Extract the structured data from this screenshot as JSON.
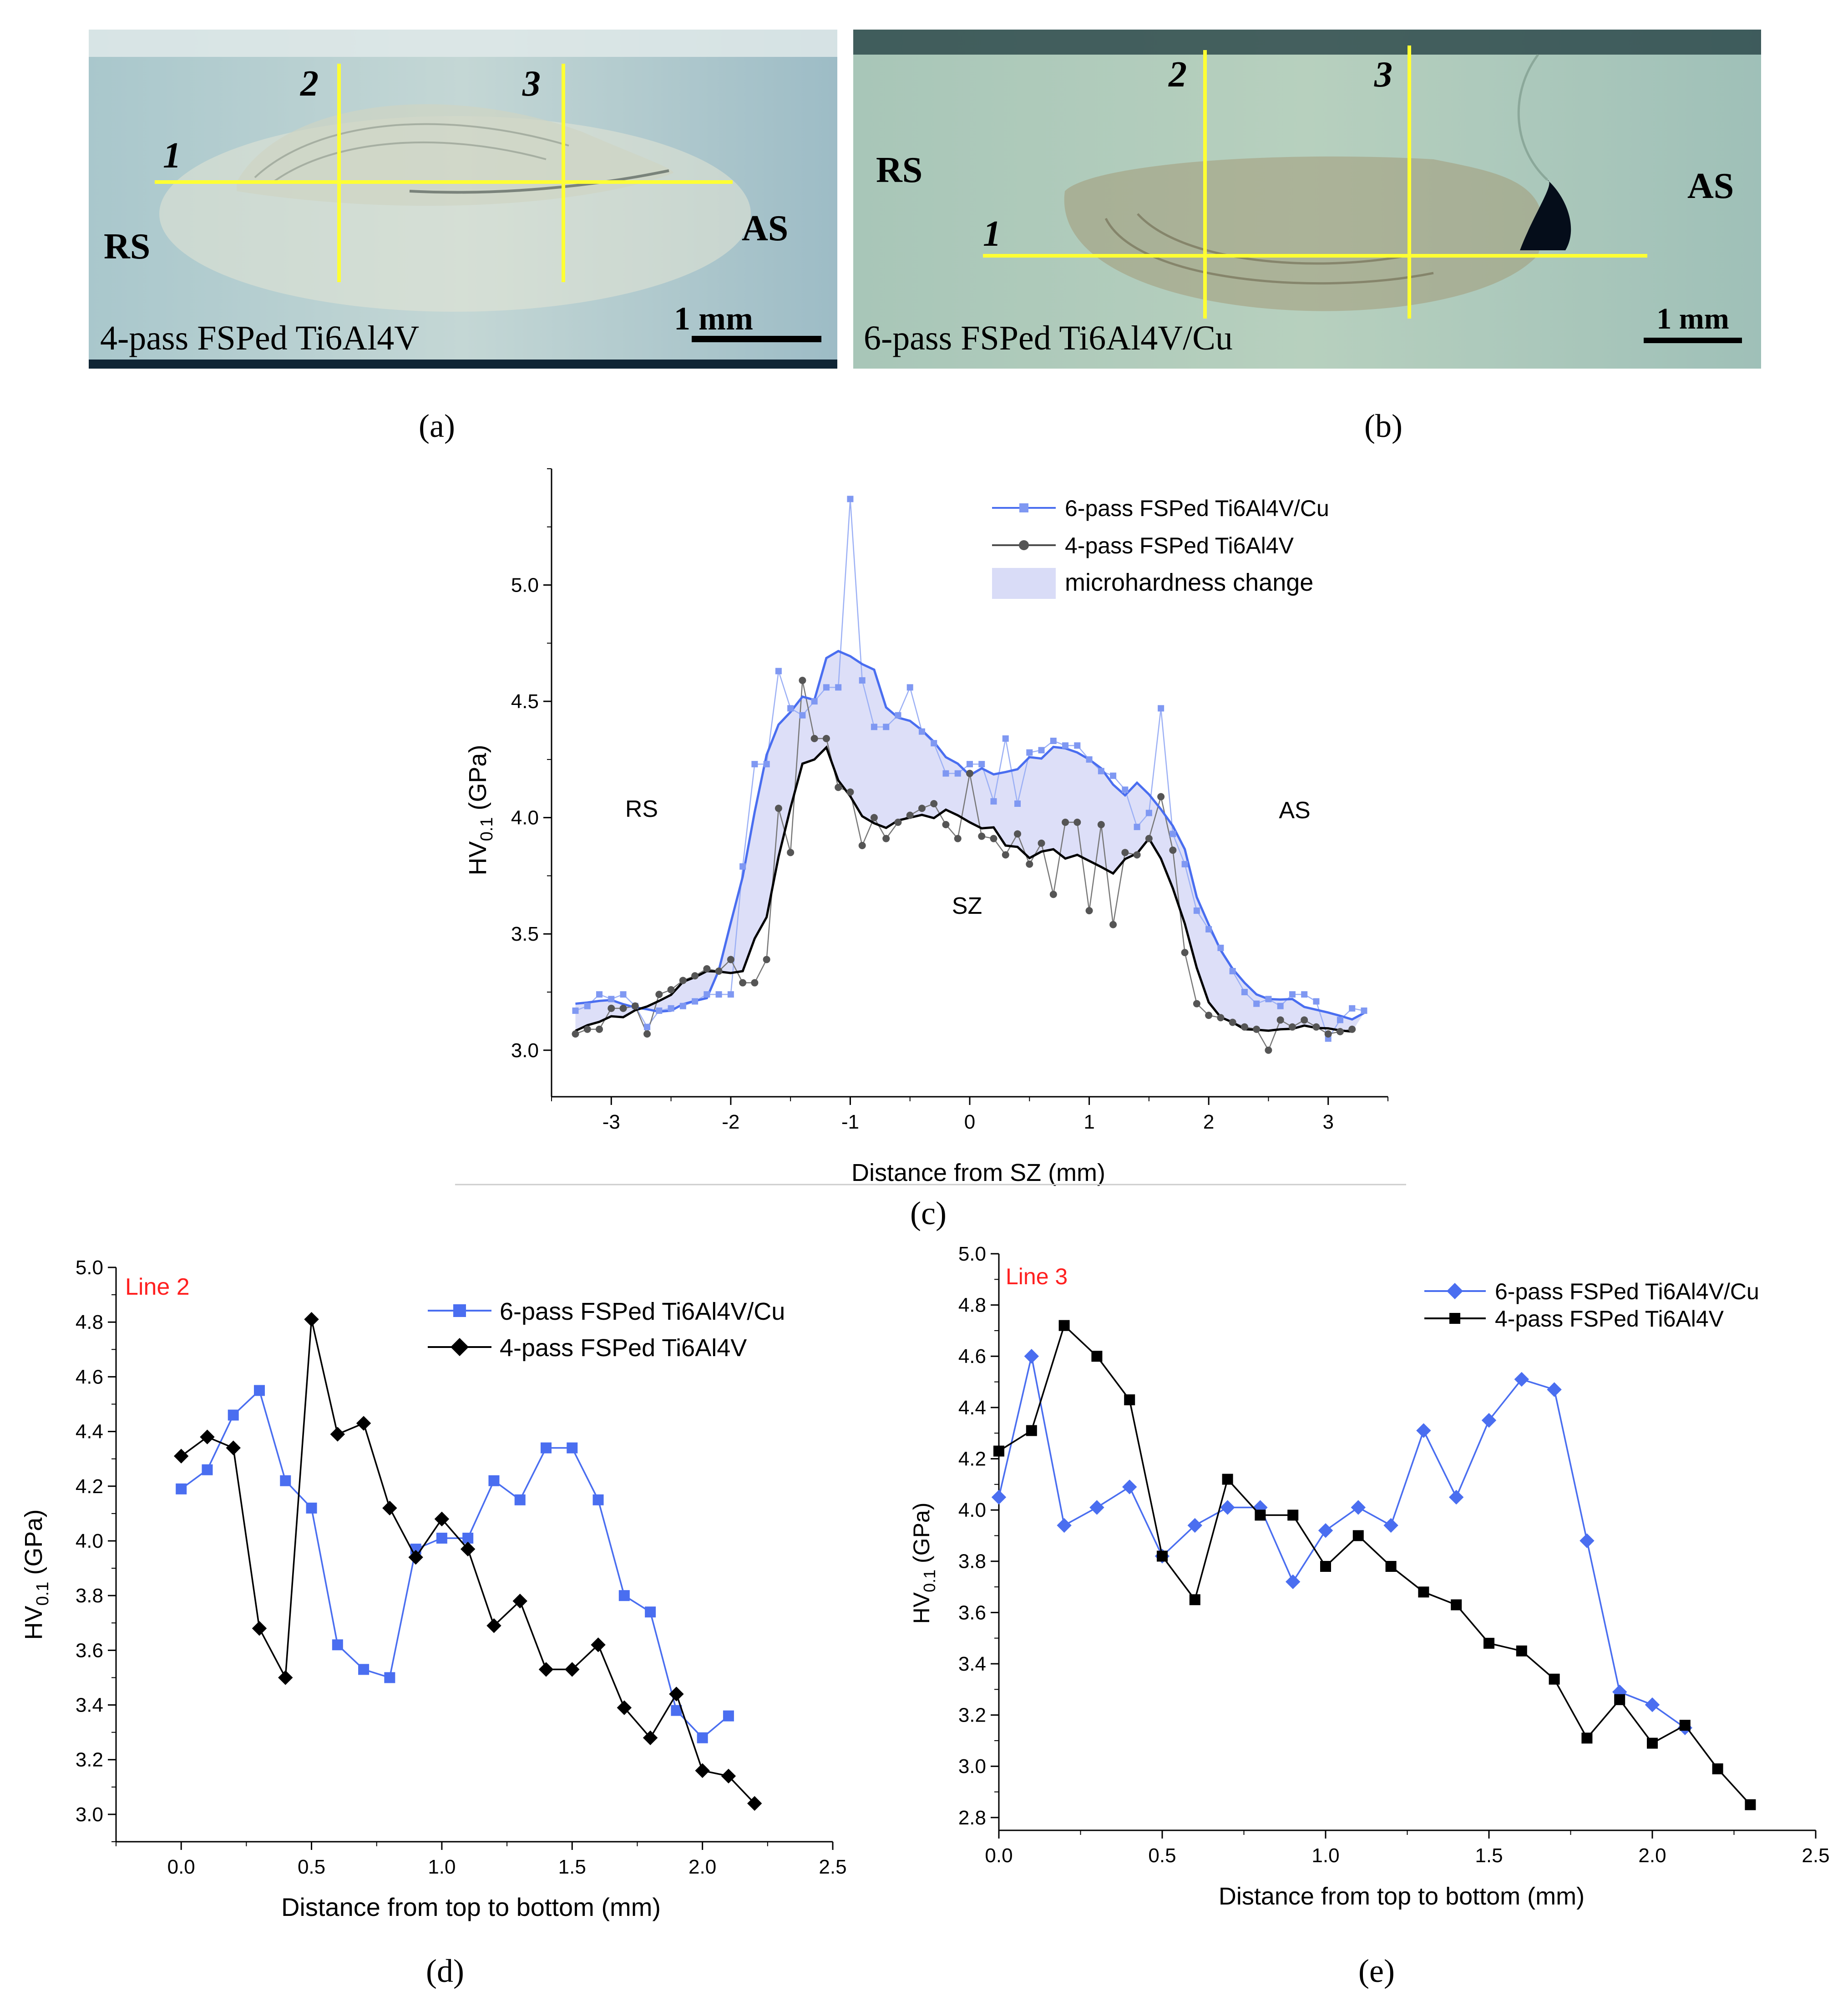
{
  "panel_a": {
    "caption": "(a)",
    "line_labels": [
      "1",
      "2",
      "3"
    ],
    "rs_label": "RS",
    "as_label": "AS",
    "scale_label": "1 mm",
    "sample_label": "4-pass FSPed Ti6Al4V"
  },
  "panel_b": {
    "caption": "(b)",
    "line_labels": [
      "1",
      "2",
      "3"
    ],
    "rs_label": "RS",
    "as_label": "AS",
    "scale_label": "1 mm",
    "sample_label": "6-pass FSPed Ti6Al4V/Cu"
  },
  "colors": {
    "blue": "#4a6ef0",
    "black": "#000000",
    "fill": "#d9dcf7",
    "yellow": "#ffff33",
    "red": "#ff2020"
  },
  "chart_data": [
    {
      "panel": "c",
      "type": "line",
      "caption": "(c)",
      "xlabel": "Distance from SZ  (mm)",
      "ylabel_main": "HV",
      "ylabel_sub": "0.1",
      "ylabel_unit": " (GPa)",
      "xlim": [
        -3.5,
        3.5
      ],
      "ylim": [
        2.8,
        5.5
      ],
      "xticks": [
        "-3",
        "-2",
        "-1",
        "0",
        "1",
        "2",
        "3"
      ],
      "yticks": [
        "3.0",
        "3.5",
        "4.0",
        "4.5",
        "5.0"
      ],
      "annotations": [
        "RS",
        "SZ",
        "AS"
      ],
      "legend_fill_label": "microhardness change",
      "series": [
        {
          "name": "6-pass FSPed Ti6Al4V/Cu",
          "color": "#4a6ef0",
          "x": [
            -3.3,
            -3.2,
            -3.1,
            -3.0,
            -2.9,
            -2.8,
            -2.7,
            -2.6,
            -2.5,
            -2.4,
            -2.3,
            -2.2,
            -2.1,
            -2.0,
            -1.9,
            -1.8,
            -1.7,
            -1.6,
            -1.5,
            -1.4,
            -1.3,
            -1.2,
            -1.1,
            -1.0,
            -0.9,
            -0.8,
            -0.7,
            -0.6,
            -0.5,
            -0.4,
            -0.3,
            -0.2,
            -0.1,
            0.0,
            0.1,
            0.2,
            0.3,
            0.4,
            0.5,
            0.6,
            0.7,
            0.8,
            0.9,
            1.0,
            1.1,
            1.2,
            1.3,
            1.4,
            1.5,
            1.6,
            1.7,
            1.8,
            1.9,
            2.0,
            2.1,
            2.2,
            2.3,
            2.4,
            2.5,
            2.6,
            2.7,
            2.8,
            2.9,
            3.0,
            3.1,
            3.2,
            3.3
          ],
          "y": [
            3.17,
            3.19,
            3.24,
            3.22,
            3.24,
            3.19,
            3.1,
            3.17,
            3.18,
            3.19,
            3.21,
            3.24,
            3.24,
            3.24,
            3.79,
            4.23,
            4.23,
            4.63,
            4.47,
            4.44,
            4.5,
            4.56,
            4.56,
            5.37,
            4.59,
            4.39,
            4.39,
            4.44,
            4.56,
            4.37,
            4.32,
            4.19,
            4.19,
            4.23,
            4.23,
            4.07,
            4.34,
            4.06,
            4.28,
            4.29,
            4.33,
            4.31,
            4.31,
            4.25,
            4.2,
            4.18,
            4.12,
            3.96,
            4.02,
            4.47,
            3.93,
            3.8,
            3.6,
            3.52,
            3.44,
            3.34,
            3.25,
            3.2,
            3.22,
            3.19,
            3.24,
            3.24,
            3.21,
            3.05,
            3.13,
            3.18,
            3.17
          ]
        },
        {
          "name": "4-pass FSPed Ti6Al4V",
          "color": "#4d4d4d",
          "x": [
            -3.3,
            -3.2,
            -3.1,
            -3.0,
            -2.9,
            -2.8,
            -2.7,
            -2.6,
            -2.5,
            -2.4,
            -2.3,
            -2.2,
            -2.1,
            -2.0,
            -1.9,
            -1.8,
            -1.7,
            -1.6,
            -1.5,
            -1.4,
            -1.3,
            -1.2,
            -1.1,
            -1.0,
            -0.9,
            -0.8,
            -0.7,
            -0.6,
            -0.5,
            -0.4,
            -0.3,
            -0.2,
            -0.1,
            0.0,
            0.1,
            0.2,
            0.3,
            0.4,
            0.5,
            0.6,
            0.7,
            0.8,
            0.9,
            1.0,
            1.1,
            1.2,
            1.3,
            1.4,
            1.5,
            1.6,
            1.7,
            1.8,
            1.9,
            2.0,
            2.1,
            2.2,
            2.3,
            2.4,
            2.5,
            2.6,
            2.7,
            2.8,
            2.9,
            3.0,
            3.1,
            3.2
          ],
          "y": [
            3.07,
            3.09,
            3.09,
            3.18,
            3.18,
            3.19,
            3.07,
            3.24,
            3.26,
            3.3,
            3.32,
            3.35,
            3.34,
            3.39,
            3.29,
            3.29,
            3.39,
            4.04,
            3.85,
            4.59,
            4.34,
            4.34,
            4.13,
            4.11,
            3.88,
            4.0,
            3.91,
            3.98,
            4.01,
            4.04,
            4.06,
            3.97,
            3.91,
            4.19,
            3.92,
            3.91,
            3.84,
            3.93,
            3.8,
            3.89,
            3.67,
            3.98,
            3.98,
            3.6,
            3.97,
            3.54,
            3.85,
            3.84,
            3.91,
            4.09,
            3.86,
            3.42,
            3.2,
            3.15,
            3.14,
            3.12,
            3.1,
            3.09,
            3.0,
            3.13,
            3.1,
            3.13,
            3.1,
            3.07,
            3.08,
            3.09
          ]
        }
      ]
    },
    {
      "panel": "d",
      "type": "line",
      "caption": "(d)",
      "title": "Line 2",
      "xlabel": "Distance from top to bottom (mm)",
      "ylabel_main": "HV",
      "ylabel_sub": "0.1",
      "ylabel_unit": " (GPa)",
      "xlim": [
        -0.25,
        2.5
      ],
      "ylim": [
        2.9,
        5.0
      ],
      "xticks": [
        "0.0",
        "0.5",
        "1.0",
        "1.5",
        "2.0",
        "2.5"
      ],
      "yticks": [
        "3.0",
        "3.2",
        "3.4",
        "3.6",
        "3.8",
        "4.0",
        "4.2",
        "4.4",
        "4.6",
        "4.8",
        "5.0"
      ],
      "series": [
        {
          "name": "6-pass FSPed Ti6Al4V/Cu",
          "color": "#4a6ef0",
          "marker": "square",
          "x": [
            0.0,
            0.1,
            0.2,
            0.3,
            0.4,
            0.5,
            0.6,
            0.7,
            0.8,
            0.9,
            1.0,
            1.1,
            1.2,
            1.3,
            1.4,
            1.5,
            1.6,
            1.7,
            1.8,
            1.9,
            2.0,
            2.1
          ],
          "y": [
            4.19,
            4.26,
            4.46,
            4.55,
            4.22,
            4.12,
            3.62,
            3.53,
            3.5,
            3.97,
            4.01,
            4.01,
            4.22,
            4.15,
            4.34,
            4.34,
            4.15,
            3.8,
            3.74,
            3.38,
            3.28,
            3.36
          ]
        },
        {
          "name": "4-pass FSPed Ti6Al4V",
          "color": "#000000",
          "marker": "diamond",
          "x": [
            0.0,
            0.1,
            0.2,
            0.3,
            0.4,
            0.5,
            0.6,
            0.7,
            0.8,
            0.9,
            1.0,
            1.1,
            1.2,
            1.3,
            1.4,
            1.5,
            1.6,
            1.7,
            1.8,
            1.9,
            2.0,
            2.1,
            2.2
          ],
          "y": [
            4.31,
            4.38,
            4.34,
            3.68,
            3.5,
            4.81,
            4.39,
            4.43,
            4.12,
            3.94,
            4.08,
            3.97,
            3.69,
            3.78,
            3.53,
            3.53,
            3.62,
            3.39,
            3.28,
            3.44,
            3.16,
            3.14,
            3.04
          ]
        }
      ]
    },
    {
      "panel": "e",
      "type": "line",
      "caption": "(e)",
      "title": "Line 3",
      "xlabel": "Distance from top to bottom (mm)",
      "ylabel_main": "HV",
      "ylabel_sub": "0.1",
      "ylabel_unit": " (GPa)",
      "xlim": [
        0.0,
        2.5
      ],
      "ylim": [
        2.75,
        5.0
      ],
      "xticks": [
        "0.0",
        "0.5",
        "1.0",
        "1.5",
        "2.0",
        "2.5"
      ],
      "yticks": [
        "2.8",
        "3.0",
        "3.2",
        "3.4",
        "3.6",
        "3.8",
        "4.0",
        "4.2",
        "4.4",
        "4.6",
        "4.8",
        "5.0"
      ],
      "series": [
        {
          "name": "6-pass FSPed Ti6Al4V/Cu",
          "color": "#4a6ef0",
          "marker": "diamond",
          "x": [
            0.0,
            0.1,
            0.2,
            0.3,
            0.4,
            0.5,
            0.6,
            0.7,
            0.8,
            0.9,
            1.0,
            1.1,
            1.2,
            1.3,
            1.4,
            1.5,
            1.6,
            1.7,
            1.8,
            1.9,
            2.0,
            2.1
          ],
          "y": [
            4.05,
            4.6,
            3.94,
            4.01,
            4.09,
            3.82,
            3.94,
            4.01,
            4.01,
            3.72,
            3.92,
            4.01,
            3.94,
            4.31,
            4.05,
            4.35,
            4.51,
            4.47,
            3.88,
            3.29,
            3.24,
            3.15
          ]
        },
        {
          "name": "4-pass FSPed Ti6Al4V",
          "color": "#000000",
          "marker": "square",
          "x": [
            0.0,
            0.1,
            0.2,
            0.3,
            0.4,
            0.5,
            0.6,
            0.7,
            0.8,
            0.9,
            1.0,
            1.1,
            1.2,
            1.3,
            1.4,
            1.5,
            1.6,
            1.7,
            1.8,
            1.9,
            2.0,
            2.1,
            2.2,
            2.3
          ],
          "y": [
            4.23,
            4.31,
            4.72,
            4.6,
            4.43,
            3.82,
            3.65,
            4.12,
            3.98,
            3.98,
            3.78,
            3.9,
            3.78,
            3.68,
            3.63,
            3.48,
            3.45,
            3.34,
            3.11,
            3.26,
            3.09,
            3.16,
            2.99,
            2.85
          ]
        }
      ]
    }
  ]
}
